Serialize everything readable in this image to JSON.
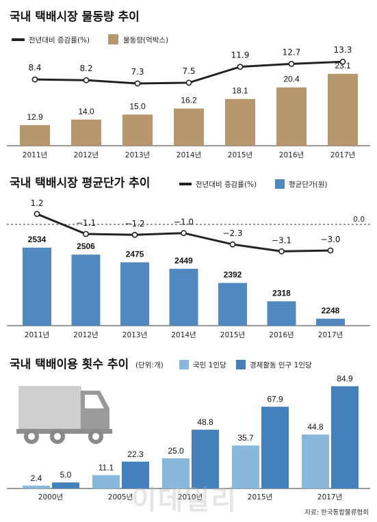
{
  "colors": {
    "tan": "#b8976f",
    "blue": "#5088bf",
    "light_blue": "#88b9dd",
    "dark_blue": "#4480bb",
    "line": "#222222",
    "axis": "#333333"
  },
  "source": "자료: 한국통합물류협회",
  "watermark": "이데일리",
  "chart_data": [
    {
      "type": "bar",
      "title": "국내 택배시장 물동량 추이",
      "legend": [
        "전년대비 증감률(%)",
        "물동량(억박스)"
      ],
      "categories": [
        "2011년",
        "2012년",
        "2013년",
        "2014년",
        "2015년",
        "2016년",
        "2017년"
      ],
      "series": [
        {
          "name": "물동량(억박스)",
          "kind": "bar",
          "values": [
            12.9,
            14.0,
            15.0,
            16.2,
            18.1,
            20.4,
            23.1
          ],
          "labels": [
            "12.9",
            "14.0",
            "15.0",
            "16.2",
            "18.1",
            "20.4",
            "23.1"
          ]
        },
        {
          "name": "전년대비 증감률(%)",
          "kind": "line",
          "values": [
            8.4,
            8.2,
            7.3,
            7.5,
            11.9,
            12.7,
            13.3
          ],
          "labels": [
            "8.4",
            "8.2",
            "7.3",
            "7.5",
            "11.9",
            "12.7",
            "13.3"
          ]
        }
      ]
    },
    {
      "type": "bar",
      "title": "국내 택배시장 평균단가 추이",
      "legend": [
        "전년대비 증감률(%)",
        "평균단가(원)"
      ],
      "categories": [
        "2011년",
        "2012년",
        "2013년",
        "2014년",
        "2015년",
        "2016년",
        "2017년"
      ],
      "reference_label": "0.0",
      "series": [
        {
          "name": "평균단가(원)",
          "kind": "bar",
          "values": [
            2534,
            2506,
            2475,
            2449,
            2392,
            2318,
            2248
          ],
          "labels": [
            "2534",
            "2506",
            "2475",
            "2449",
            "2392",
            "2318",
            "2248"
          ]
        },
        {
          "name": "전년대비 증감률(%)",
          "kind": "line",
          "values": [
            1.2,
            -1.1,
            -1.2,
            -1.0,
            -2.3,
            -3.1,
            -3.0
          ],
          "labels": [
            "1.2",
            "−1.1",
            "−1.2",
            "−1.0",
            "−2.3",
            "−3.1",
            "−3.0"
          ]
        }
      ]
    },
    {
      "type": "bar",
      "title": "국내 택배이용 횟수 추이",
      "unit": "(단위:개)",
      "legend": [
        "국민 1인당",
        "경제활동 인구 1인당"
      ],
      "categories": [
        "2000년",
        "2005년",
        "2010년",
        "2015년",
        "2017년"
      ],
      "series": [
        {
          "name": "국민 1인당",
          "kind": "bar",
          "values": [
            2.4,
            11.1,
            25.0,
            35.7,
            44.8
          ],
          "labels": [
            "2.4",
            "11.1",
            "25.0",
            "35.7",
            "44.8"
          ]
        },
        {
          "name": "경제활동 인구 1인당",
          "kind": "bar",
          "values": [
            5.0,
            22.3,
            48.8,
            67.9,
            84.9
          ],
          "labels": [
            "5.0",
            "22.3",
            "48.8",
            "67.9",
            "84.9"
          ]
        }
      ]
    }
  ]
}
